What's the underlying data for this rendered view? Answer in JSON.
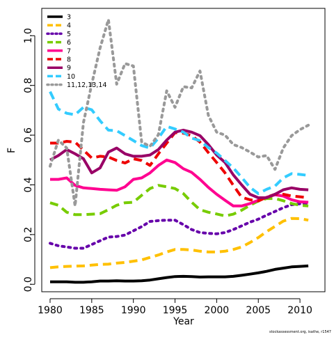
{
  "chart_data": {
    "type": "line",
    "title": "",
    "xlabel": "Year",
    "ylabel": "F",
    "xlim": [
      1979,
      2013
    ],
    "ylim": [
      -0.03,
      1.11
    ],
    "x_ticks": [
      1980,
      1985,
      1990,
      1995,
      2000,
      2005,
      2010
    ],
    "y_ticks": [
      0.0,
      0.2,
      0.4,
      0.6,
      0.8,
      1.0
    ],
    "y_tick_labels": [
      "0.0",
      "0.2",
      "0.4",
      "0.6",
      "0.8",
      "1.0"
    ],
    "grid": false,
    "legend_position": "top-left",
    "footer": "stockassessment.org, isathe, r1547",
    "x": [
      1980,
      1981,
      1982,
      1983,
      1984,
      1985,
      1986,
      1987,
      1988,
      1989,
      1990,
      1991,
      1992,
      1993,
      1994,
      1995,
      1996,
      1997,
      1998,
      1999,
      2000,
      2001,
      2002,
      2003,
      2004,
      2005,
      2006,
      2007,
      2008,
      2009,
      2010,
      2011
    ],
    "series": [
      {
        "name": "3",
        "color": "#000000",
        "dash": "solid",
        "values": [
          0.01,
          0.01,
          0.01,
          0.008,
          0.008,
          0.01,
          0.013,
          0.013,
          0.014,
          0.013,
          0.013,
          0.014,
          0.017,
          0.022,
          0.027,
          0.031,
          0.032,
          0.031,
          0.029,
          0.03,
          0.03,
          0.03,
          0.032,
          0.036,
          0.041,
          0.046,
          0.052,
          0.06,
          0.065,
          0.07,
          0.072,
          0.074
        ]
      },
      {
        "name": "4",
        "color": "#FFC000",
        "dash": "dash",
        "values": [
          0.067,
          0.07,
          0.072,
          0.073,
          0.074,
          0.077,
          0.08,
          0.081,
          0.085,
          0.088,
          0.093,
          0.098,
          0.108,
          0.118,
          0.13,
          0.14,
          0.14,
          0.138,
          0.133,
          0.13,
          0.13,
          0.133,
          0.14,
          0.15,
          0.168,
          0.188,
          0.212,
          0.233,
          0.254,
          0.265,
          0.264,
          0.258
        ]
      },
      {
        "name": "5",
        "color": "#6600AA",
        "dash": "dot",
        "values": [
          0.165,
          0.155,
          0.15,
          0.145,
          0.145,
          0.16,
          0.175,
          0.19,
          0.192,
          0.198,
          0.215,
          0.232,
          0.253,
          0.256,
          0.258,
          0.258,
          0.24,
          0.22,
          0.208,
          0.205,
          0.203,
          0.208,
          0.22,
          0.235,
          0.25,
          0.262,
          0.278,
          0.293,
          0.308,
          0.32,
          0.324,
          0.322
        ]
      },
      {
        "name": "6",
        "color": "#77CC00",
        "dash": "dash",
        "values": [
          0.328,
          0.318,
          0.29,
          0.28,
          0.28,
          0.282,
          0.284,
          0.3,
          0.318,
          0.328,
          0.33,
          0.358,
          0.385,
          0.398,
          0.392,
          0.385,
          0.365,
          0.33,
          0.3,
          0.29,
          0.283,
          0.275,
          0.282,
          0.298,
          0.318,
          0.335,
          0.345,
          0.345,
          0.336,
          0.325,
          0.318,
          0.315
        ]
      },
      {
        "name": "7",
        "color": "#FF0090",
        "dash": "solid",
        "values": [
          0.422,
          0.422,
          0.428,
          0.398,
          0.388,
          0.385,
          0.382,
          0.38,
          0.378,
          0.392,
          0.422,
          0.428,
          0.448,
          0.478,
          0.5,
          0.49,
          0.465,
          0.45,
          0.422,
          0.39,
          0.362,
          0.338,
          0.315,
          0.315,
          0.325,
          0.338,
          0.35,
          0.36,
          0.355,
          0.34,
          0.332,
          0.33
        ]
      },
      {
        "name": "8",
        "color": "#EE0000",
        "dash": "dash",
        "values": [
          0.568,
          0.568,
          0.575,
          0.572,
          0.54,
          0.508,
          0.515,
          0.512,
          0.498,
          0.488,
          0.505,
          0.498,
          0.478,
          0.525,
          0.568,
          0.61,
          0.608,
          0.598,
          0.572,
          0.53,
          0.49,
          0.448,
          0.398,
          0.35,
          0.34,
          0.335,
          0.35,
          0.362,
          0.362,
          0.355,
          0.352,
          0.348
        ]
      },
      {
        "name": "9",
        "color": "#990066",
        "dash": "solid",
        "values": [
          0.5,
          0.518,
          0.542,
          0.525,
          0.505,
          0.448,
          0.468,
          0.532,
          0.548,
          0.525,
          0.515,
          0.515,
          0.52,
          0.542,
          0.58,
          0.612,
          0.62,
          0.612,
          0.598,
          0.562,
          0.52,
          0.49,
          0.44,
          0.4,
          0.362,
          0.348,
          0.348,
          0.362,
          0.38,
          0.388,
          0.382,
          0.38
        ]
      },
      {
        "name": "10",
        "color": "#33CCFF",
        "dash": "dash",
        "values": [
          0.775,
          0.705,
          0.688,
          0.682,
          0.712,
          0.702,
          0.658,
          0.62,
          0.618,
          0.598,
          0.578,
          0.558,
          0.548,
          0.588,
          0.635,
          0.625,
          0.612,
          0.588,
          0.578,
          0.55,
          0.528,
          0.498,
          0.468,
          0.43,
          0.39,
          0.365,
          0.382,
          0.395,
          0.428,
          0.445,
          0.442,
          0.438
        ]
      },
      {
        "name": "11,12,13,14",
        "color": "#999999",
        "dash": "dot",
        "values": [
          0.475,
          0.58,
          0.548,
          0.315,
          0.65,
          0.805,
          0.95,
          1.065,
          0.805,
          0.888,
          0.878,
          0.572,
          0.555,
          0.602,
          0.778,
          0.712,
          0.795,
          0.79,
          0.858,
          0.68,
          0.612,
          0.6,
          0.562,
          0.55,
          0.532,
          0.512,
          0.518,
          0.462,
          0.548,
          0.598,
          0.622,
          0.64
        ]
      }
    ]
  }
}
